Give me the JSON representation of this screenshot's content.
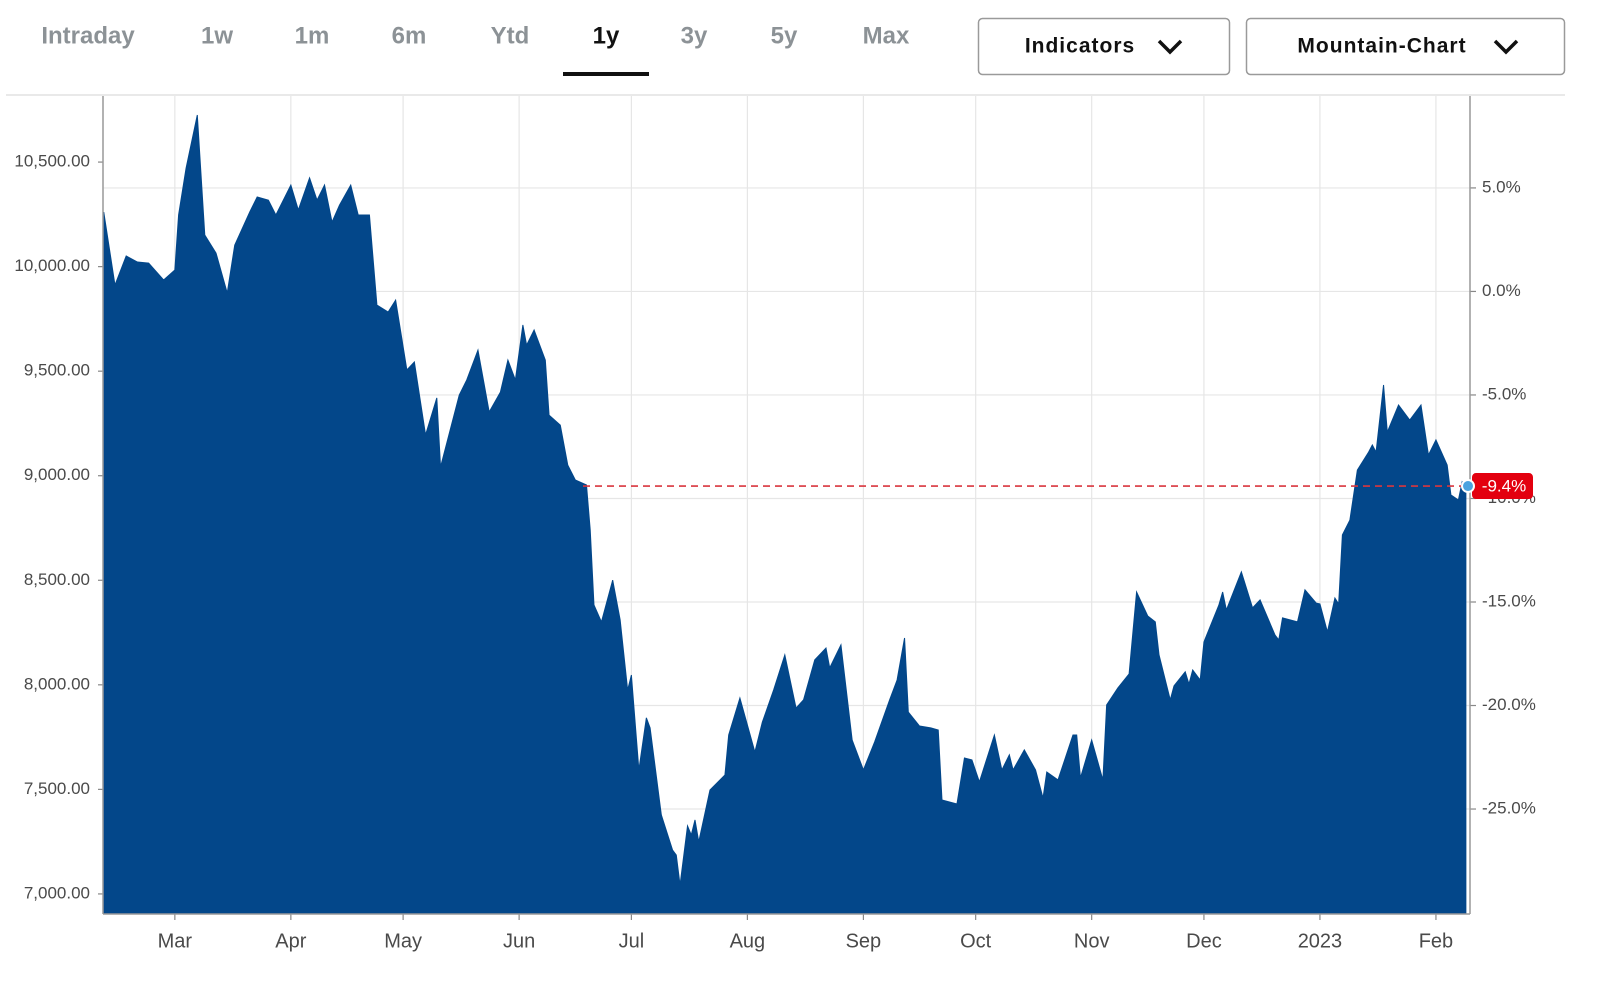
{
  "tabs": [
    "Intraday",
    "1w",
    "1m",
    "6m",
    "Ytd",
    "1y",
    "3y",
    "5y",
    "Max"
  ],
  "selected_tab": 5,
  "buttons": [
    "Indicators",
    "Mountain-Chart"
  ],
  "chart_data": {
    "type": "area",
    "color": "#03478a",
    "grid": true,
    "x": [
      -19,
      -16,
      -13,
      -10,
      -7,
      -3,
      0,
      1,
      3,
      6,
      8,
      11,
      14,
      16,
      20,
      22,
      25,
      27,
      31,
      33,
      36,
      38,
      40,
      42,
      44,
      47,
      49,
      52,
      54,
      57,
      59,
      62,
      64,
      67,
      70,
      71,
      76,
      78,
      81,
      84,
      87,
      89,
      91,
      93,
      94,
      96,
      99,
      100,
      103,
      105,
      107,
      110,
      111,
      112,
      114,
      117,
      119,
      121,
      122,
      124,
      126,
      127,
      130,
      133,
      134,
      135,
      137,
      138,
      139,
      140,
      143,
      147,
      148,
      151,
      153,
      155,
      157,
      160,
      163,
      166,
      168,
      171,
      174,
      175,
      178,
      181,
      184,
      187,
      191,
      193,
      195,
      196,
      199,
      202,
      204,
      205,
      209,
      211,
      213,
      215,
      219,
      221,
      223,
      224,
      227,
      230,
      232,
      233,
      236,
      240,
      241,
      242,
      245,
      248,
      249,
      252,
      255,
      257,
      260,
      262,
      263,
      266,
      267,
      270,
      271,
      272,
      274,
      275,
      279,
      280,
      281,
      285,
      288,
      290,
      294,
      295,
      296,
      300,
      302,
      305,
      306,
      308,
      310,
      311,
      312,
      314,
      316,
      319,
      320,
      321,
      323,
      324,
      327,
      330,
      333,
      335,
      337,
      340,
      341,
      343,
      344,
      345
    ],
    "values": [
      10261,
      9912,
      10051,
      10022,
      10017,
      9936,
      9984,
      10247,
      10471,
      10725,
      10151,
      10065,
      9874,
      10103,
      10261,
      10333,
      10318,
      10247,
      10390,
      10271,
      10424,
      10318,
      10390,
      10213,
      10294,
      10390,
      10247,
      10247,
      9816,
      9783,
      9840,
      9506,
      9544,
      9195,
      9372,
      9042,
      9386,
      9458,
      9601,
      9305,
      9400,
      9553,
      9458,
      9721,
      9625,
      9697,
      9553,
      9290,
      9242,
      9051,
      8980,
      8956,
      8740,
      8382,
      8301,
      8501,
      8310,
      7975,
      8047,
      7593,
      7842,
      7794,
      7378,
      7210,
      7186,
      7043,
      7325,
      7282,
      7354,
      7249,
      7497,
      7569,
      7760,
      7937,
      7808,
      7679,
      7822,
      7975,
      8143,
      7889,
      7928,
      8119,
      8176,
      8081,
      8191,
      7736,
      7593,
      7727,
      7928,
      8023,
      8224,
      7870,
      7803,
      7794,
      7784,
      7449,
      7430,
      7650,
      7641,
      7536,
      7760,
      7593,
      7665,
      7593,
      7689,
      7593,
      7459,
      7583,
      7545,
      7760,
      7760,
      7555,
      7736,
      7545,
      7904,
      7985,
      8052,
      8444,
      8329,
      8301,
      8143,
      7928,
      7995,
      8062,
      8004,
      8071,
      8023,
      8205,
      8382,
      8444,
      8358,
      8540,
      8368,
      8406,
      8238,
      8215,
      8320,
      8301,
      8454,
      8391,
      8387,
      8253,
      8415,
      8387,
      8717,
      8788,
      9027,
      9113,
      9147,
      9113,
      9434,
      9209,
      9338,
      9266,
      9338,
      9099,
      9171,
      9051,
      8908,
      8884,
      8970,
      8941
    ],
    "xlim": [
      -19.2,
      346.1
    ],
    "xticks": [
      {
        "value": 0,
        "label": "Mar"
      },
      {
        "value": 31,
        "label": "Apr"
      },
      {
        "value": 61,
        "label": "May"
      },
      {
        "value": 92,
        "label": "Jun"
      },
      {
        "value": 122,
        "label": "Jul"
      },
      {
        "value": 153,
        "label": "Aug"
      },
      {
        "value": 184,
        "label": "Sep"
      },
      {
        "value": 214,
        "label": "Oct"
      },
      {
        "value": 245,
        "label": "Nov"
      },
      {
        "value": 275,
        "label": "Dec"
      },
      {
        "value": 306,
        "label": "2023"
      },
      {
        "value": 337,
        "label": "Feb"
      }
    ],
    "ylim": [
      6904,
      10816
    ],
    "yticks": [
      {
        "value": 7000,
        "label": "7,000.00"
      },
      {
        "value": 7500,
        "label": "7,500.00"
      },
      {
        "value": 8000,
        "label": "8,000.00"
      },
      {
        "value": 8500,
        "label": "8,500.00"
      },
      {
        "value": 9000,
        "label": "9,000.00"
      },
      {
        "value": 9500,
        "label": "9,500.00"
      },
      {
        "value": 10000,
        "label": "10,000.00"
      },
      {
        "value": 10500,
        "label": "10,500.00"
      }
    ],
    "y2lim": [
      -30.07,
      9.44
    ],
    "y2ticks": [
      {
        "value": 5,
        "label": "5.0%"
      },
      {
        "value": 0,
        "label": "0.0%"
      },
      {
        "value": -5,
        "label": "-5.0%"
      },
      {
        "value": -10,
        "label": "-10.0%"
      },
      {
        "value": -15,
        "label": "-15.0%"
      },
      {
        "value": -20,
        "label": "-20.0%"
      },
      {
        "value": -25,
        "label": "-25.0%"
      }
    ],
    "last_change": {
      "value": -9.4,
      "label": "-9.4%",
      "axis": "y2"
    }
  }
}
